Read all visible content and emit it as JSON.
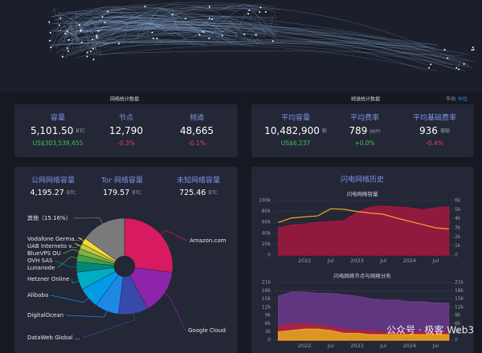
{
  "sections": {
    "network_title": "网络统计数据",
    "channel_title": "频道统计数据",
    "toggle": [
      "平均",
      "中位"
    ]
  },
  "network_stats": [
    {
      "label": "容量",
      "value": "5,101.50",
      "unit": "BTC",
      "sub": "US$303,539,455",
      "sub_color": "#43c35a"
    },
    {
      "label": "节点",
      "value": "12,790",
      "sub": "-0.3%",
      "sub_color": "#e0474c"
    },
    {
      "label": "频道",
      "value": "48,665",
      "sub": "-0.1%",
      "sub_color": "#e0474c"
    }
  ],
  "channel_stats": [
    {
      "label": "平均容量",
      "value": "10,482,900",
      "unit": "聪",
      "sub": "US$6,237",
      "sub_color": "#43c35a"
    },
    {
      "label": "平均费率",
      "value": "789",
      "unit": "ppm",
      "sub": "+0.0%",
      "sub_color": "#43c35a"
    },
    {
      "label": "平均基础费率",
      "value": "936",
      "unit": "毫聪",
      "sub": "-0.4%",
      "sub_color": "#e0474c"
    }
  ],
  "network_types": [
    {
      "label": "公网网络容量",
      "value": "4,195.27",
      "unit": "BTC"
    },
    {
      "label": "Tor 网络容量",
      "value": "179.57",
      "unit": "BTC"
    },
    {
      "label": "未知网络容量",
      "value": "725.46",
      "unit": "BTC"
    }
  ],
  "history_title": "闪电网络历史",
  "watermark": "公众号 · 极客 Web3",
  "chart_data": [
    {
      "type": "pie",
      "categories": [
        "Amazon.com",
        "Google Cloud",
        "DataWeb Global ...",
        "DigitalOcean",
        "Alibaba",
        "Hetzner Online",
        "OVH SAS",
        "Lunanode",
        "BlueVPS OU",
        "UAB Interneto v...",
        "Vodafone Germa...",
        "其他"
      ],
      "values": [
        27,
        15,
        10,
        8,
        7,
        6,
        3.5,
        2.5,
        2,
        1.8,
        2,
        15.16
      ],
      "value_labels": [
        null,
        null,
        null,
        null,
        null,
        null,
        null,
        null,
        null,
        null,
        null,
        "（15.16%）"
      ],
      "colors": [
        "#d81b60",
        "#8e24aa",
        "#3949ab",
        "#1e88e5",
        "#039be5",
        "#00acc1",
        "#00897b",
        "#43a047",
        "#7cb342",
        "#c0ca33",
        "#fdd835",
        "#7a7a7a"
      ]
    },
    {
      "type": "area",
      "title": "闪电网络容量",
      "x": [
        2021.5,
        2021.75,
        2022,
        2022.25,
        2022.5,
        2022.75,
        2023,
        2023.25,
        2023.5,
        2023.75,
        2024,
        2024.25,
        2024.5,
        2024.75
      ],
      "xlim": [
        2021.4,
        2024.8
      ],
      "xticks": [
        {
          "value": 2022,
          "label": "2022"
        },
        {
          "value": 2022.5,
          "label": "Jul"
        },
        {
          "value": 2023,
          "label": "2023"
        },
        {
          "value": 2023.5,
          "label": "Jul"
        },
        {
          "value": 2024,
          "label": "2024"
        },
        {
          "value": 2024.5,
          "label": "Jul"
        }
      ],
      "ylim": [
        0,
        100000
      ],
      "yticks": [
        0,
        {
          "value": 20000,
          "label": "20k"
        },
        {
          "value": 40000,
          "label": "40k"
        },
        {
          "value": 60000,
          "label": "60k"
        },
        {
          "value": 80000,
          "label": "80k"
        },
        {
          "value": 100000,
          "label": "100k"
        }
      ],
      "y2lim": [
        0,
        6000
      ],
      "y2ticks": [
        0,
        {
          "value": 1000,
          "label": "1k"
        },
        {
          "value": 2000,
          "label": "2k"
        },
        {
          "value": 3000,
          "label": "3k"
        },
        {
          "value": 4000,
          "label": "4k"
        },
        {
          "value": 5000,
          "label": "5k"
        },
        {
          "value": 6000,
          "label": "6k"
        }
      ],
      "series": [
        {
          "color": "#a3173f",
          "axis": "y2",
          "fill": true,
          "values": [
            3000,
            3300,
            3400,
            3600,
            3700,
            3800,
            4700,
            5300,
            5400,
            5300,
            5200,
            5000,
            5200,
            5300
          ]
        },
        {
          "color": "#f5a623",
          "fill": false,
          "values": [
            60000,
            68000,
            70000,
            72000,
            85000,
            84000,
            80000,
            77000,
            75000,
            68000,
            62000,
            56000,
            50000,
            48000
          ]
        }
      ]
    },
    {
      "type": "area",
      "title": "闪电网络节点与网络分布",
      "x": [
        2021.5,
        2021.75,
        2022,
        2022.25,
        2022.5,
        2022.75,
        2023,
        2023.25,
        2023.5,
        2023.75,
        2024,
        2024.25,
        2024.5,
        2024.75
      ],
      "xlim": [
        2021.4,
        2024.8
      ],
      "xticks": [
        {
          "value": 2022,
          "label": "2022"
        },
        {
          "value": 2022.5,
          "label": "Jul"
        },
        {
          "value": 2023,
          "label": "2023"
        },
        {
          "value": 2023.5,
          "label": "Jul"
        },
        {
          "value": 2024,
          "label": "2024"
        },
        {
          "value": 2024.5,
          "label": "Jul"
        }
      ],
      "ylim": [
        0,
        21000
      ],
      "yticks": [
        0,
        {
          "value": 3000,
          "label": "3k"
        },
        {
          "value": 6000,
          "label": "6k"
        },
        {
          "value": 9000,
          "label": "9k"
        },
        {
          "value": 12000,
          "label": "12k"
        },
        {
          "value": 15000,
          "label": "15k"
        },
        {
          "value": 18000,
          "label": "18k"
        },
        {
          "value": 21000,
          "label": "21k"
        }
      ],
      "y2lim": [
        0,
        21000
      ],
      "y2ticks": [
        0,
        {
          "value": 3000,
          "label": "3k"
        },
        {
          "value": 6000,
          "label": "6k"
        },
        {
          "value": 9000,
          "label": "9k"
        },
        {
          "value": 12000,
          "label": "12k"
        },
        {
          "value": 15000,
          "label": "15k"
        },
        {
          "value": 18000,
          "label": "18k"
        },
        {
          "value": 21000,
          "label": "21k"
        }
      ],
      "series": [
        {
          "color": "#6a3a8c",
          "fill": true,
          "values": [
            16000,
            17500,
            17500,
            17000,
            17000,
            16500,
            16000,
            15000,
            14500,
            14500,
            14000,
            14000,
            13500,
            13500
          ]
        },
        {
          "color": "#b0203f",
          "fill": true,
          "values": [
            5000,
            6000,
            6000,
            5500,
            5000,
            4000,
            3500,
            3500,
            3000,
            3000,
            3000,
            3000,
            3000,
            3000
          ]
        },
        {
          "color": "#e8a81e",
          "fill": true,
          "values": [
            3000,
            3500,
            4000,
            4000,
            3500,
            2500,
            2500,
            2000,
            2000,
            2000,
            2000,
            2000,
            2000,
            2000
          ]
        }
      ]
    }
  ]
}
